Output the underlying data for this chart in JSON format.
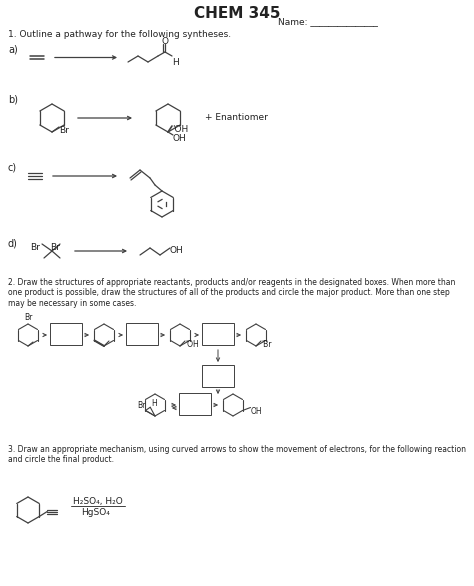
{
  "title": "CHEM 345",
  "title_fontsize": 11,
  "title_fontfamily": "DejaVu Sans",
  "name_label": "Name: _______________",
  "bg_color": "#ffffff",
  "text_color": "#000000",
  "q1_label": "1. Outline a pathway for the following syntheses.",
  "q2_label": "2. Draw the structures of appropriate reactants, products and/or reagents in the designated boxes. When more than\none product is possible, draw the structures of all of the products and circle the major product. More than one step\nmay be necessary in some cases.",
  "q3_label": "3. Draw an appropriate mechanism, using curved arrows to show the movement of electrons, for the following reaction\nand circle the final product.",
  "reagent3_top": "H₂SO₄, H₂O",
  "reagent3_bot": "HgSO₄"
}
